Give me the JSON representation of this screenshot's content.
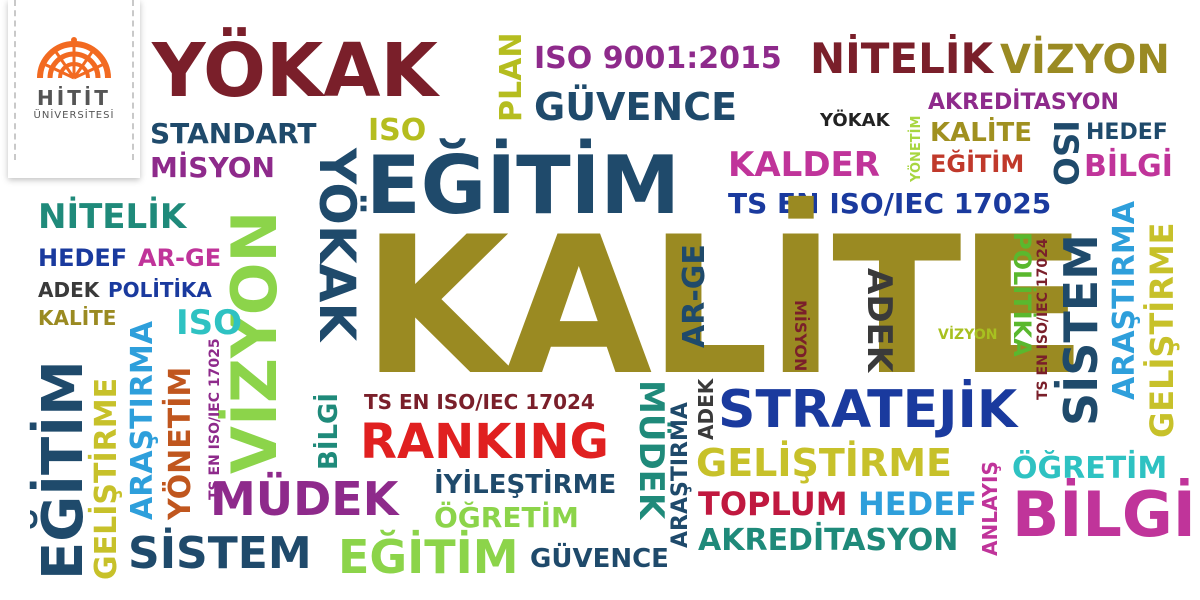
{
  "logo": {
    "title": "HİTİT",
    "subtitle": "ÜNİVERSİTESİ",
    "mark_color": "#f26a21",
    "icon": "dome-icon"
  },
  "words": {
    "yokak_1": "YÖKAK",
    "plan": "PLAN",
    "iso9001": "ISO 9001:2015",
    "nitelik_1": "NİTELİK",
    "vizyon_1": "VİZYON",
    "guvence_1": "GÜVENCE",
    "akreditasyon_1": "AKREDİTASYON",
    "standart": "STANDART",
    "iso_1": "ISO",
    "yokak_2": "YÖKAK",
    "yonetim_1": "YÖNETİM",
    "kalite_1": "KALİTE",
    "hedef_1": "HEDEF",
    "misyon_1": "MİSYON",
    "egitim_1": "EĞİTİM",
    "kalder": "KALDER",
    "egitim_2": "EĞİTİM",
    "iso_v": "ISO",
    "bilgi_1": "BİLGİ",
    "yokak_v": "YÖKAK",
    "ts17025_1": "TS EN ISO/IEC 17025",
    "nitelik_2": "NİTELİK",
    "vizyon_v": "VİZYON",
    "hedef_2": "HEDEF",
    "arge_1": "AR-GE",
    "adek_1": "ADEK",
    "politika_1": "POLİTİKA",
    "kalite_big": "KALİTE",
    "arge_v": "AR-GE",
    "misyon_v": "MİSYON",
    "adek_v": "ADEK",
    "vizyon_small": "VİZYON",
    "politika_v": "POLİTİKA",
    "ts17024_v": "TS EN ISO/IEC 17024",
    "sistem_v": "SİSTEM",
    "arastirma_v1": "ARAŞTIRMA",
    "gelistirme_v1": "GELİŞTİRME",
    "kalite_2": "KALİTE",
    "iso_2": "ISO",
    "egitim_v": "EĞİTİM",
    "gelistirme_v2": "GELİŞTİRME",
    "arastirma_v2": "ARAŞTIRMA",
    "yonetim_v": "YÖNETİM",
    "ts17025_v": "TS EN ISO/IEC 17025",
    "bilgi_v": "BİLGİ",
    "ts17024_1": "TS EN ISO/IEC 17024",
    "ranking": "RANKING",
    "mudek_v": "MÜDEK",
    "arastirma_v3": "ARAŞTIRMA",
    "adek_v2": "ADEK",
    "stratejik": "STRATEJİK",
    "gelistirme_1": "GELİŞTİRME",
    "anlayis_v": "ANLAYIŞ",
    "ogretim_1": "ÖĞRETİM",
    "mudek_1": "MÜDEK",
    "iyilestirme": "İYİLEŞTİRME",
    "toplum": "TOPLUM",
    "hedef_3": "HEDEF",
    "bilgi_2": "BİLGİ",
    "ogretim_2": "ÖĞRETİM",
    "akreditasyon_2": "AKREDİTASYON",
    "sistem_1": "SİSTEM",
    "egitim_3": "EĞİTİM",
    "guvence_2": "GÜVENCE"
  }
}
